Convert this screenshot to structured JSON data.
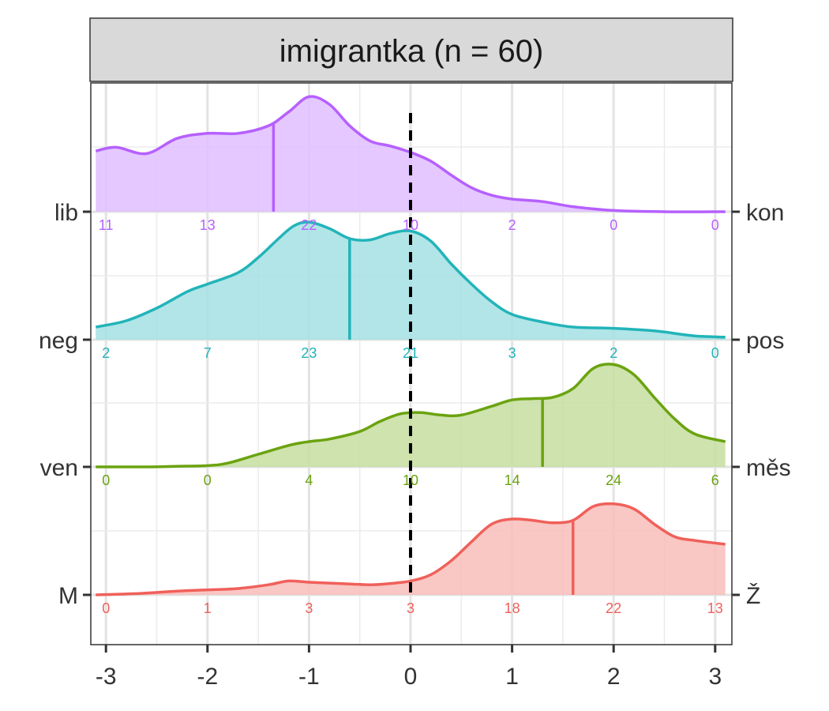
{
  "chart_data": {
    "type": "ridgeline",
    "title": "imigrantka (n = 60)",
    "xlim": [
      -3.1,
      3.1
    ],
    "x_ticks": [
      -3,
      -2,
      -1,
      0,
      1,
      2,
      3
    ],
    "x_tick_labels": [
      "-3",
      "-2",
      "-1",
      "0",
      "1",
      "2",
      "3"
    ],
    "count_x": [
      -3,
      -2,
      -1,
      0,
      1,
      2,
      3
    ],
    "reference_line_x": 0,
    "grid": true,
    "series": [
      {
        "left_label": "lib",
        "right_label": "kon",
        "color": "#B660FF",
        "fill": "#E0BEFF",
        "mean": -1.35,
        "counts": [
          11,
          13,
          22,
          10,
          2,
          0,
          0
        ],
        "count_labels": [
          "11",
          "13",
          "22",
          "10",
          "2",
          "0",
          "0"
        ],
        "density": [
          [
            -3.1,
            0.48
          ],
          [
            -2.9,
            0.51
          ],
          [
            -2.6,
            0.46
          ],
          [
            -2.3,
            0.58
          ],
          [
            -2.0,
            0.62
          ],
          [
            -1.7,
            0.62
          ],
          [
            -1.4,
            0.68
          ],
          [
            -1.2,
            0.79
          ],
          [
            -1.0,
            0.91
          ],
          [
            -0.8,
            0.85
          ],
          [
            -0.6,
            0.68
          ],
          [
            -0.4,
            0.56
          ],
          [
            -0.2,
            0.52
          ],
          [
            0.0,
            0.47
          ],
          [
            0.2,
            0.4
          ],
          [
            0.4,
            0.29
          ],
          [
            0.6,
            0.19
          ],
          [
            0.8,
            0.13
          ],
          [
            1.0,
            0.1
          ],
          [
            1.3,
            0.08
          ],
          [
            1.6,
            0.04
          ],
          [
            2.0,
            0.01
          ],
          [
            2.5,
            0.0
          ],
          [
            3.1,
            0.0
          ]
        ]
      },
      {
        "left_label": "neg",
        "right_label": "pos",
        "color": "#22B4B9",
        "fill": "#A5E1E3",
        "mean": -0.6,
        "counts": [
          2,
          7,
          23,
          21,
          3,
          2,
          0
        ],
        "count_labels": [
          "2",
          "7",
          "23",
          "21",
          "3",
          "2",
          "0"
        ],
        "density": [
          [
            -3.1,
            0.1
          ],
          [
            -2.8,
            0.15
          ],
          [
            -2.5,
            0.25
          ],
          [
            -2.2,
            0.38
          ],
          [
            -2.0,
            0.44
          ],
          [
            -1.7,
            0.53
          ],
          [
            -1.5,
            0.65
          ],
          [
            -1.3,
            0.8
          ],
          [
            -1.15,
            0.9
          ],
          [
            -1.0,
            0.93
          ],
          [
            -0.8,
            0.88
          ],
          [
            -0.6,
            0.8
          ],
          [
            -0.4,
            0.79
          ],
          [
            -0.2,
            0.84
          ],
          [
            0.0,
            0.86
          ],
          [
            0.2,
            0.78
          ],
          [
            0.4,
            0.6
          ],
          [
            0.6,
            0.44
          ],
          [
            0.8,
            0.3
          ],
          [
            1.0,
            0.2
          ],
          [
            1.3,
            0.14
          ],
          [
            1.6,
            0.1
          ],
          [
            2.0,
            0.09
          ],
          [
            2.4,
            0.07
          ],
          [
            2.8,
            0.03
          ],
          [
            3.1,
            0.02
          ]
        ]
      },
      {
        "left_label": "ven",
        "right_label": "měs",
        "color": "#6BA310",
        "fill": "#C5DE9F",
        "mean": 1.3,
        "counts": [
          0,
          0,
          4,
          10,
          14,
          24,
          6
        ],
        "count_labels": [
          "0",
          "0",
          "4",
          "10",
          "14",
          "24",
          "6"
        ],
        "density": [
          [
            -3.1,
            0.0
          ],
          [
            -2.6,
            0.0
          ],
          [
            -2.3,
            0.005
          ],
          [
            -2.0,
            0.01
          ],
          [
            -1.8,
            0.03
          ],
          [
            -1.5,
            0.1
          ],
          [
            -1.2,
            0.17
          ],
          [
            -1.0,
            0.2
          ],
          [
            -0.8,
            0.22
          ],
          [
            -0.5,
            0.28
          ],
          [
            -0.3,
            0.36
          ],
          [
            -0.1,
            0.42
          ],
          [
            0.1,
            0.43
          ],
          [
            0.3,
            0.41
          ],
          [
            0.5,
            0.41
          ],
          [
            0.8,
            0.48
          ],
          [
            1.0,
            0.53
          ],
          [
            1.2,
            0.54
          ],
          [
            1.4,
            0.55
          ],
          [
            1.6,
            0.62
          ],
          [
            1.8,
            0.78
          ],
          [
            2.0,
            0.81
          ],
          [
            2.2,
            0.73
          ],
          [
            2.4,
            0.55
          ],
          [
            2.6,
            0.38
          ],
          [
            2.8,
            0.26
          ],
          [
            3.1,
            0.2
          ]
        ]
      },
      {
        "left_label": "M",
        "right_label": "Ž",
        "color": "#F0605A",
        "fill": "#F8BDBA",
        "mean": 1.6,
        "counts": [
          0,
          1,
          3,
          3,
          18,
          22,
          13
        ],
        "count_labels": [
          "0",
          "1",
          "3",
          "3",
          "18",
          "22",
          "13"
        ],
        "density": [
          [
            -3.1,
            0.0
          ],
          [
            -2.7,
            0.01
          ],
          [
            -2.3,
            0.03
          ],
          [
            -2.0,
            0.04
          ],
          [
            -1.7,
            0.05
          ],
          [
            -1.4,
            0.08
          ],
          [
            -1.2,
            0.11
          ],
          [
            -1.0,
            0.1
          ],
          [
            -0.7,
            0.09
          ],
          [
            -0.4,
            0.08
          ],
          [
            -0.2,
            0.09
          ],
          [
            0.0,
            0.11
          ],
          [
            0.2,
            0.16
          ],
          [
            0.4,
            0.27
          ],
          [
            0.6,
            0.42
          ],
          [
            0.8,
            0.56
          ],
          [
            1.0,
            0.6
          ],
          [
            1.2,
            0.59
          ],
          [
            1.4,
            0.57
          ],
          [
            1.6,
            0.59
          ],
          [
            1.8,
            0.7
          ],
          [
            2.0,
            0.72
          ],
          [
            2.2,
            0.68
          ],
          [
            2.4,
            0.56
          ],
          [
            2.6,
            0.46
          ],
          [
            2.8,
            0.43
          ],
          [
            3.1,
            0.4
          ]
        ]
      }
    ]
  }
}
